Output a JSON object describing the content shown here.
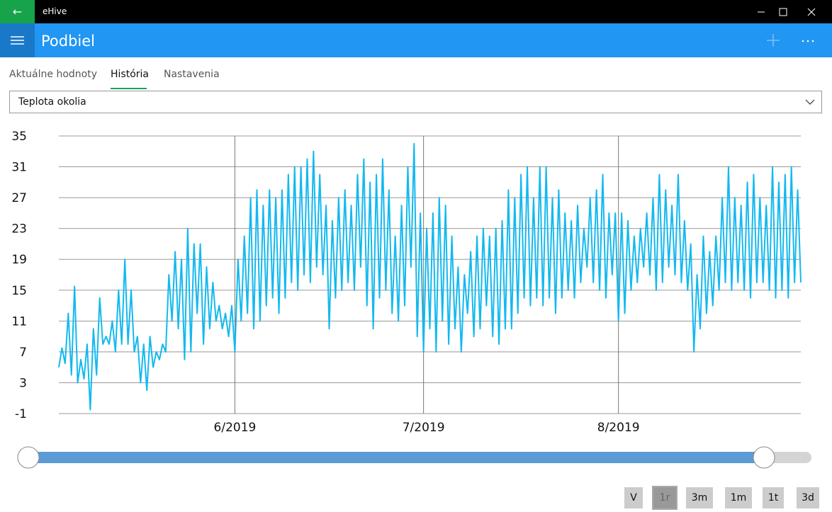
{
  "window": {
    "title": "eHive"
  },
  "header": {
    "title": "Podbiel"
  },
  "tabs": [
    "Aktuálne hodnoty",
    "História",
    "Nastavenia"
  ],
  "active_tab": 1,
  "dropdown": {
    "selected": "Teplota okolia"
  },
  "range_buttons": [
    "V",
    "1r",
    "3m",
    "1m",
    "1t",
    "3d"
  ],
  "active_range_button": 1,
  "chart_data": {
    "type": "line",
    "color": "#13b9ef",
    "grid": true,
    "ylim": [
      -1,
      35
    ],
    "yticks": [
      -1,
      3,
      7,
      11,
      15,
      19,
      23,
      27,
      31,
      35
    ],
    "xlim": [
      0,
      118
    ],
    "xticks": [
      {
        "value": 28,
        "label": "6/2019"
      },
      {
        "value": 58,
        "label": "7/2019"
      },
      {
        "value": 89,
        "label": "8/2019"
      }
    ],
    "x": [
      0,
      0.5,
      1,
      1.5,
      2,
      2.5,
      3,
      3.5,
      4,
      4.5,
      5,
      5.5,
      6,
      6.5,
      7,
      7.5,
      8,
      8.5,
      9,
      9.5,
      10,
      10.5,
      11,
      11.5,
      12,
      12.5,
      13,
      13.5,
      14,
      14.5,
      15,
      15.5,
      16,
      16.5,
      17,
      17.5,
      18,
      18.5,
      19,
      19.5,
      20,
      20.5,
      21,
      21.5,
      22,
      22.5,
      23,
      23.5,
      24,
      24.5,
      25,
      25.5,
      26,
      26.5,
      27,
      27.5,
      28,
      28.5,
      29,
      29.5,
      30,
      30.5,
      31,
      31.5,
      32,
      32.5,
      33,
      33.5,
      34,
      34.5,
      35,
      35.5,
      36,
      36.5,
      37,
      37.5,
      38,
      38.5,
      39,
      39.5,
      40,
      40.5,
      41,
      41.5,
      42,
      42.5,
      43,
      43.5,
      44,
      44.5,
      45,
      45.5,
      46,
      46.5,
      47,
      47.5,
      48,
      48.5,
      49,
      49.5,
      50,
      50.5,
      51,
      51.5,
      52,
      52.5,
      53,
      53.5,
      54,
      54.5,
      55,
      55.5,
      56,
      56.5,
      57,
      57.5,
      58,
      58.5,
      59,
      59.5,
      60,
      60.5,
      61,
      61.5,
      62,
      62.5,
      63,
      63.5,
      64,
      64.5,
      65,
      65.5,
      66,
      66.5,
      67,
      67.5,
      68,
      68.5,
      69,
      69.5,
      70,
      70.5,
      71,
      71.5,
      72,
      72.5,
      73,
      73.5,
      74,
      74.5,
      75,
      75.5,
      76,
      76.5,
      77,
      77.5,
      78,
      78.5,
      79,
      79.5,
      80,
      80.5,
      81,
      81.5,
      82,
      82.5,
      83,
      83.5,
      84,
      84.5,
      85,
      85.5,
      86,
      86.5,
      87,
      87.5,
      88,
      88.5,
      89,
      89.5,
      90,
      90.5,
      91,
      91.5,
      92,
      92.5,
      93,
      93.5,
      94,
      94.5,
      95,
      95.5,
      96,
      96.5,
      97,
      97.5,
      98,
      98.5,
      99,
      99.5,
      100,
      100.5,
      101,
      101.5,
      102,
      102.5,
      103,
      103.5,
      104,
      104.5,
      105,
      105.5,
      106,
      106.5,
      107,
      107.5,
      108,
      108.5,
      109,
      109.5,
      110,
      110.5,
      111,
      111.5,
      112,
      112.5,
      113,
      113.5,
      114,
      114.5,
      115,
      115.5,
      116,
      116.5,
      117,
      117.5,
      118
    ],
    "values": [
      5,
      7.5,
      5.5,
      12,
      4,
      15.5,
      3,
      6,
      3.5,
      8,
      -0.5,
      10,
      4,
      14,
      8,
      9,
      8,
      11,
      7,
      15,
      8,
      19,
      8,
      15,
      7,
      9,
      3,
      8,
      2,
      9,
      5,
      7,
      6,
      8,
      7,
      17,
      11,
      20,
      10,
      19,
      6,
      23,
      7,
      21,
      12,
      21,
      8,
      18,
      10,
      16,
      11,
      13,
      10,
      12,
      9,
      13,
      7,
      19,
      11,
      22,
      12,
      27,
      10,
      28,
      11,
      26,
      13,
      28,
      14,
      27,
      12,
      28,
      14,
      30,
      16,
      31,
      15,
      31,
      17,
      32,
      16,
      33,
      18,
      30,
      17,
      26,
      10,
      24,
      14,
      27,
      15,
      28,
      16,
      26,
      15,
      30,
      18,
      32,
      13,
      29,
      10,
      30,
      14,
      32,
      15,
      28,
      12,
      22,
      11,
      26,
      13,
      31,
      18,
      34,
      9,
      25,
      7,
      23,
      10,
      25,
      7,
      27,
      11,
      26,
      8,
      22,
      10,
      18,
      7,
      17,
      12,
      20,
      9,
      22,
      10,
      23,
      13,
      22,
      9,
      23,
      8,
      24,
      10,
      28,
      10,
      27,
      12,
      30,
      14,
      31,
      13,
      27,
      14,
      31,
      13,
      31,
      14,
      27,
      12,
      28,
      14,
      25,
      15,
      24,
      14,
      26,
      16,
      23,
      18,
      27,
      16,
      28,
      15,
      30,
      14,
      25,
      17,
      25,
      11,
      25,
      12,
      24,
      15,
      22,
      16,
      23,
      18,
      25,
      17,
      27,
      15,
      30,
      16,
      28,
      18,
      26,
      17,
      30,
      16,
      24,
      15,
      21,
      7,
      17,
      10,
      22,
      12,
      20,
      13,
      22,
      15,
      27,
      16,
      31,
      15,
      27,
      16,
      26,
      15,
      29,
      14,
      30,
      16,
      27,
      16,
      26,
      15,
      31,
      14,
      29,
      15,
      30,
      14,
      31,
      16,
      28,
      16
    ]
  }
}
